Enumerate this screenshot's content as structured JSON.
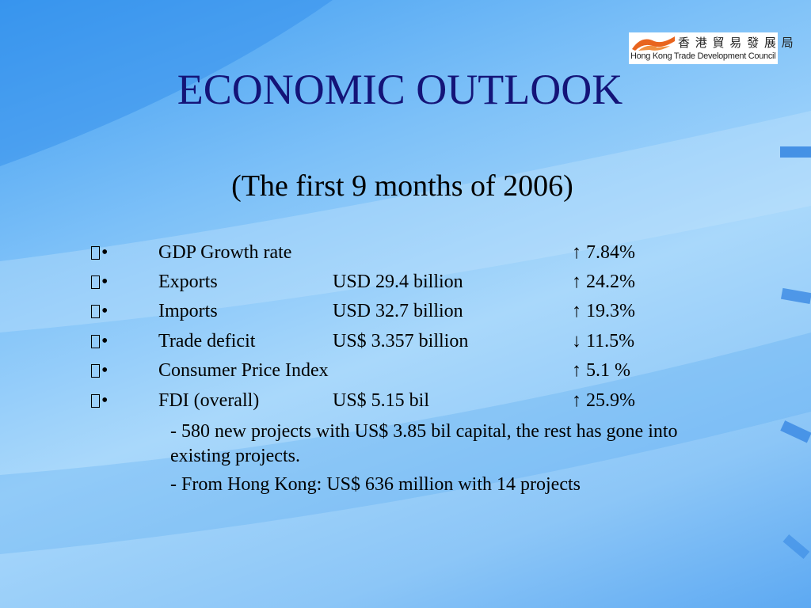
{
  "logo": {
    "chinese": "香 港 貿 易 發 展 局",
    "english": "Hong Kong Trade Development Council"
  },
  "header": {
    "title": "ECONOMIC OUTLOOK",
    "subtitle": "(The first 9 months of 2006)"
  },
  "bullet": "•",
  "rows": [
    {
      "label": "GDP Growth rate",
      "value": "",
      "change": "↑ 7.84%"
    },
    {
      "label": "Exports",
      "value": "USD 29.4 billion",
      "change": "↑ 24.2%"
    },
    {
      "label": "Imports",
      "value": "USD 32.7 billion",
      "change": "↑ 19.3%"
    },
    {
      "label": "Trade deficit",
      "value": "US$ 3.357 billion",
      "change": "↓ 11.5%"
    },
    {
      "label": "Consumer Price Index",
      "value": "",
      "change": "↑ 5.1 %"
    },
    {
      "label": "FDI (overall)",
      "value": "US$ 5.15 bil",
      "change": "↑ 25.9%"
    }
  ],
  "notes": [
    "- 580 new projects with US$ 3.85 bil capital, the rest has gone into existing projects.",
    "- From Hong Kong: US$ 636 million with 14 projects"
  ]
}
